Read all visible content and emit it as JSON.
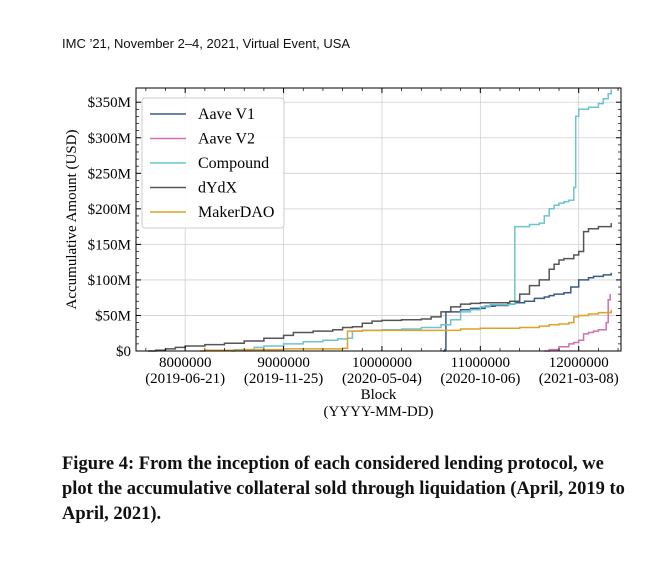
{
  "header": {
    "text": "IMC ’21, November 2–4, 2021, Virtual Event, USA"
  },
  "caption": {
    "text": "Figure 4: From the inception of each considered lending protocol, we plot the accumulative collateral sold through liquidation (April, 2019 to April, 2021)."
  },
  "chart_data": {
    "type": "line",
    "title": "",
    "xlabel": "Block",
    "xlabel2": "(YYYY-MM-DD)",
    "ylabel": "Accumulative Amount (USD)",
    "xlim": [
      7500000,
      12430000
    ],
    "ylim": [
      0,
      370
    ],
    "x_ticks": [
      {
        "value": 8000000,
        "label": "8000000",
        "date": "(2019-06-21)"
      },
      {
        "value": 9000000,
        "label": "9000000",
        "date": "(2019-11-25)"
      },
      {
        "value": 10000000,
        "label": "10000000",
        "date": "(2020-05-04)"
      },
      {
        "value": 11000000,
        "label": "11000000",
        "date": "(2020-10-06)"
      },
      {
        "value": 12000000,
        "label": "12000000",
        "date": "(2021-03-08)"
      }
    ],
    "y_ticks": [
      {
        "value": 0,
        "label": "$0"
      },
      {
        "value": 50,
        "label": "$50M"
      },
      {
        "value": 100,
        "label": "$100M"
      },
      {
        "value": 150,
        "label": "$150M"
      },
      {
        "value": 200,
        "label": "$200M"
      },
      {
        "value": 250,
        "label": "$250M"
      },
      {
        "value": 300,
        "label": "$300M"
      },
      {
        "value": 350,
        "label": "$350M"
      }
    ],
    "legend_position": "top-left",
    "series": [
      {
        "name": "Aave V1",
        "color": "#3a5a85",
        "x": [
          10620000,
          10640000,
          10650000,
          10800000,
          10900000,
          11050000,
          11150000,
          11200000,
          11280000,
          11350000,
          11450000,
          11550000,
          11650000,
          11700000,
          11750000,
          11800000,
          11850000,
          11920000,
          12000000,
          12100000,
          12150000,
          12250000,
          12330000
        ],
        "y": [
          0,
          2,
          55,
          58,
          60,
          63,
          64,
          64,
          66,
          68,
          70,
          74,
          76,
          78,
          80,
          80,
          82,
          90,
          100,
          103,
          105,
          107,
          110
        ]
      },
      {
        "name": "Aave V2",
        "color": "#d26fae",
        "x": [
          11650000,
          11700000,
          11800000,
          11900000,
          11950000,
          12000000,
          12050000,
          12100000,
          12150000,
          12200000,
          12280000,
          12300000,
          12320000
        ],
        "y": [
          0,
          2,
          6,
          10,
          12,
          15,
          24,
          26,
          28,
          30,
          40,
          72,
          80
        ]
      },
      {
        "name": "Compound",
        "color": "#6bc4d0",
        "x": [
          8470000,
          8500000,
          8700000,
          8800000,
          9000000,
          9200000,
          9400000,
          9550000,
          9650000,
          9700000,
          9800000,
          10000000,
          10200000,
          10400000,
          10600000,
          10700000,
          10800000,
          10900000,
          11000000,
          11100000,
          11300000,
          11350000,
          11400000,
          11500000,
          11600000,
          11650000,
          11700000,
          11750000,
          11800000,
          11850000,
          11900000,
          11950000,
          11970000,
          12000000,
          12100000,
          12200000,
          12250000,
          12300000,
          12330000
        ],
        "y": [
          0,
          2,
          5,
          7,
          10,
          13,
          15,
          17,
          18,
          28,
          29,
          30,
          31,
          33,
          37,
          44,
          55,
          58,
          62,
          65,
          66,
          175,
          175,
          178,
          180,
          190,
          200,
          205,
          208,
          210,
          212,
          230,
          330,
          340,
          343,
          348,
          355,
          362,
          368
        ]
      },
      {
        "name": "dYdX",
        "color": "#555555",
        "x": [
          7620000,
          7700000,
          7800000,
          7900000,
          8000000,
          8200000,
          8400000,
          8600000,
          8800000,
          9000000,
          9100000,
          9300000,
          9500000,
          9600000,
          9700000,
          9800000,
          9900000,
          10000000,
          10200000,
          10400000,
          10500000,
          10600000,
          10700000,
          10800000,
          10900000,
          11000000,
          11200000,
          11300000,
          11400000,
          11500000,
          11600000,
          11700000,
          11750000,
          11800000,
          11850000,
          11950000,
          12000000,
          12050000,
          12100000,
          12200000,
          12330000
        ],
        "y": [
          0,
          1,
          3,
          5,
          7,
          9,
          11,
          14,
          18,
          22,
          26,
          28,
          30,
          33,
          34,
          39,
          42,
          43,
          44,
          45,
          48,
          55,
          62,
          66,
          67,
          68,
          68,
          70,
          80,
          92,
          100,
          115,
          122,
          128,
          130,
          135,
          140,
          168,
          172,
          175,
          180
        ]
      },
      {
        "name": "MakerDAO",
        "color": "#e0a02a",
        "x": [
          8150000,
          8200000,
          8600000,
          9000000,
          9300000,
          9600000,
          9650000,
          9800000,
          10000000,
          10200000,
          10400000,
          10600000,
          10800000,
          11000000,
          11200000,
          11400000,
          11600000,
          11700000,
          11800000,
          11900000,
          11950000,
          12000000,
          12100000,
          12200000,
          12330000
        ],
        "y": [
          0,
          1,
          2,
          3,
          3,
          4,
          28,
          29,
          29,
          29,
          29,
          29,
          31,
          32,
          32,
          33,
          35,
          37,
          38,
          40,
          48,
          50,
          52,
          54,
          58
        ]
      }
    ]
  }
}
